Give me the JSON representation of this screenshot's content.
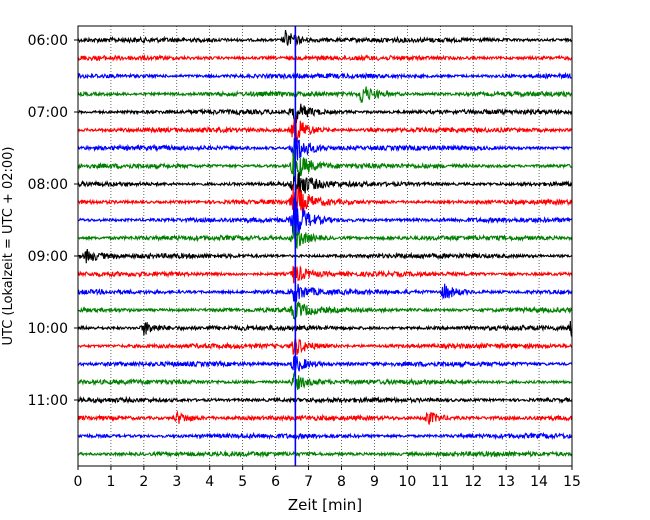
{
  "chart_data": {
    "type": "line",
    "title": "",
    "xlabel": "Zeit  [min]",
    "ylabel": "UTC (Lokalzeit = UTC + 02:00)",
    "xlim": [
      0,
      15
    ],
    "x_ticks": [
      "0",
      "1",
      "2",
      "3",
      "4",
      "5",
      "6",
      "7",
      "8",
      "9",
      "10",
      "11",
      "12",
      "13",
      "14",
      "15"
    ],
    "y_ticks": [
      "06:00",
      "07:00",
      "08:00",
      "09:00",
      "10:00",
      "11:00"
    ],
    "grid": "vertical dotted",
    "trace_colors": [
      "#000000",
      "#ff0000",
      "#0000ff",
      "#008000"
    ],
    "marker": {
      "x": 6.6,
      "color": "#0000ff"
    },
    "traces": [
      {
        "row": 0,
        "color": "#000000",
        "events": [
          {
            "x": 6.3,
            "amp": 9
          }
        ]
      },
      {
        "row": 1,
        "color": "#ff0000",
        "events": []
      },
      {
        "row": 2,
        "color": "#0000ff",
        "events": []
      },
      {
        "row": 3,
        "color": "#008000",
        "events": [
          {
            "x": 8.6,
            "amp": 10
          }
        ]
      },
      {
        "row": 4,
        "color": "#000000",
        "events": [
          {
            "x": 6.55,
            "amp": 12
          }
        ]
      },
      {
        "row": 5,
        "color": "#ff0000",
        "events": [
          {
            "x": 6.55,
            "amp": 16
          }
        ]
      },
      {
        "row": 6,
        "color": "#0000ff",
        "events": [
          {
            "x": 6.55,
            "amp": 18
          }
        ]
      },
      {
        "row": 7,
        "color": "#008000",
        "events": [
          {
            "x": 6.55,
            "amp": 18
          }
        ]
      },
      {
        "row": 8,
        "color": "#000000",
        "events": [
          {
            "x": 6.55,
            "amp": 20
          }
        ]
      },
      {
        "row": 9,
        "color": "#ff0000",
        "events": [
          {
            "x": 6.55,
            "amp": 20
          }
        ]
      },
      {
        "row": 10,
        "color": "#0000ff",
        "events": [
          {
            "x": 6.55,
            "amp": 22
          }
        ]
      },
      {
        "row": 11,
        "color": "#008000",
        "events": [
          {
            "x": 6.55,
            "amp": 12
          }
        ]
      },
      {
        "row": 12,
        "color": "#000000",
        "events": [
          {
            "x": 0.25,
            "amp": 6
          }
        ]
      },
      {
        "row": 13,
        "color": "#ff0000",
        "events": [
          {
            "x": 6.55,
            "amp": 10
          }
        ]
      },
      {
        "row": 14,
        "color": "#0000ff",
        "events": [
          {
            "x": 11.1,
            "amp": 8
          },
          {
            "x": 6.55,
            "amp": 10
          }
        ]
      },
      {
        "row": 15,
        "color": "#008000",
        "events": [
          {
            "x": 6.55,
            "amp": 10
          }
        ]
      },
      {
        "row": 16,
        "color": "#000000",
        "events": [
          {
            "x": 2.0,
            "amp": 7
          },
          {
            "x": 14.95,
            "amp": 7
          }
        ]
      },
      {
        "row": 17,
        "color": "#ff0000",
        "events": [
          {
            "x": 6.55,
            "amp": 10
          }
        ]
      },
      {
        "row": 18,
        "color": "#0000ff",
        "events": [
          {
            "x": 6.55,
            "amp": 10
          }
        ]
      },
      {
        "row": 19,
        "color": "#008000",
        "events": [
          {
            "x": 6.55,
            "amp": 9
          }
        ]
      },
      {
        "row": 20,
        "color": "#000000",
        "events": []
      },
      {
        "row": 21,
        "color": "#ff0000",
        "events": [
          {
            "x": 3.0,
            "amp": 6
          },
          {
            "x": 10.6,
            "amp": 7
          }
        ]
      },
      {
        "row": 22,
        "color": "#0000ff",
        "events": []
      },
      {
        "row": 23,
        "color": "#008000",
        "events": []
      }
    ]
  }
}
